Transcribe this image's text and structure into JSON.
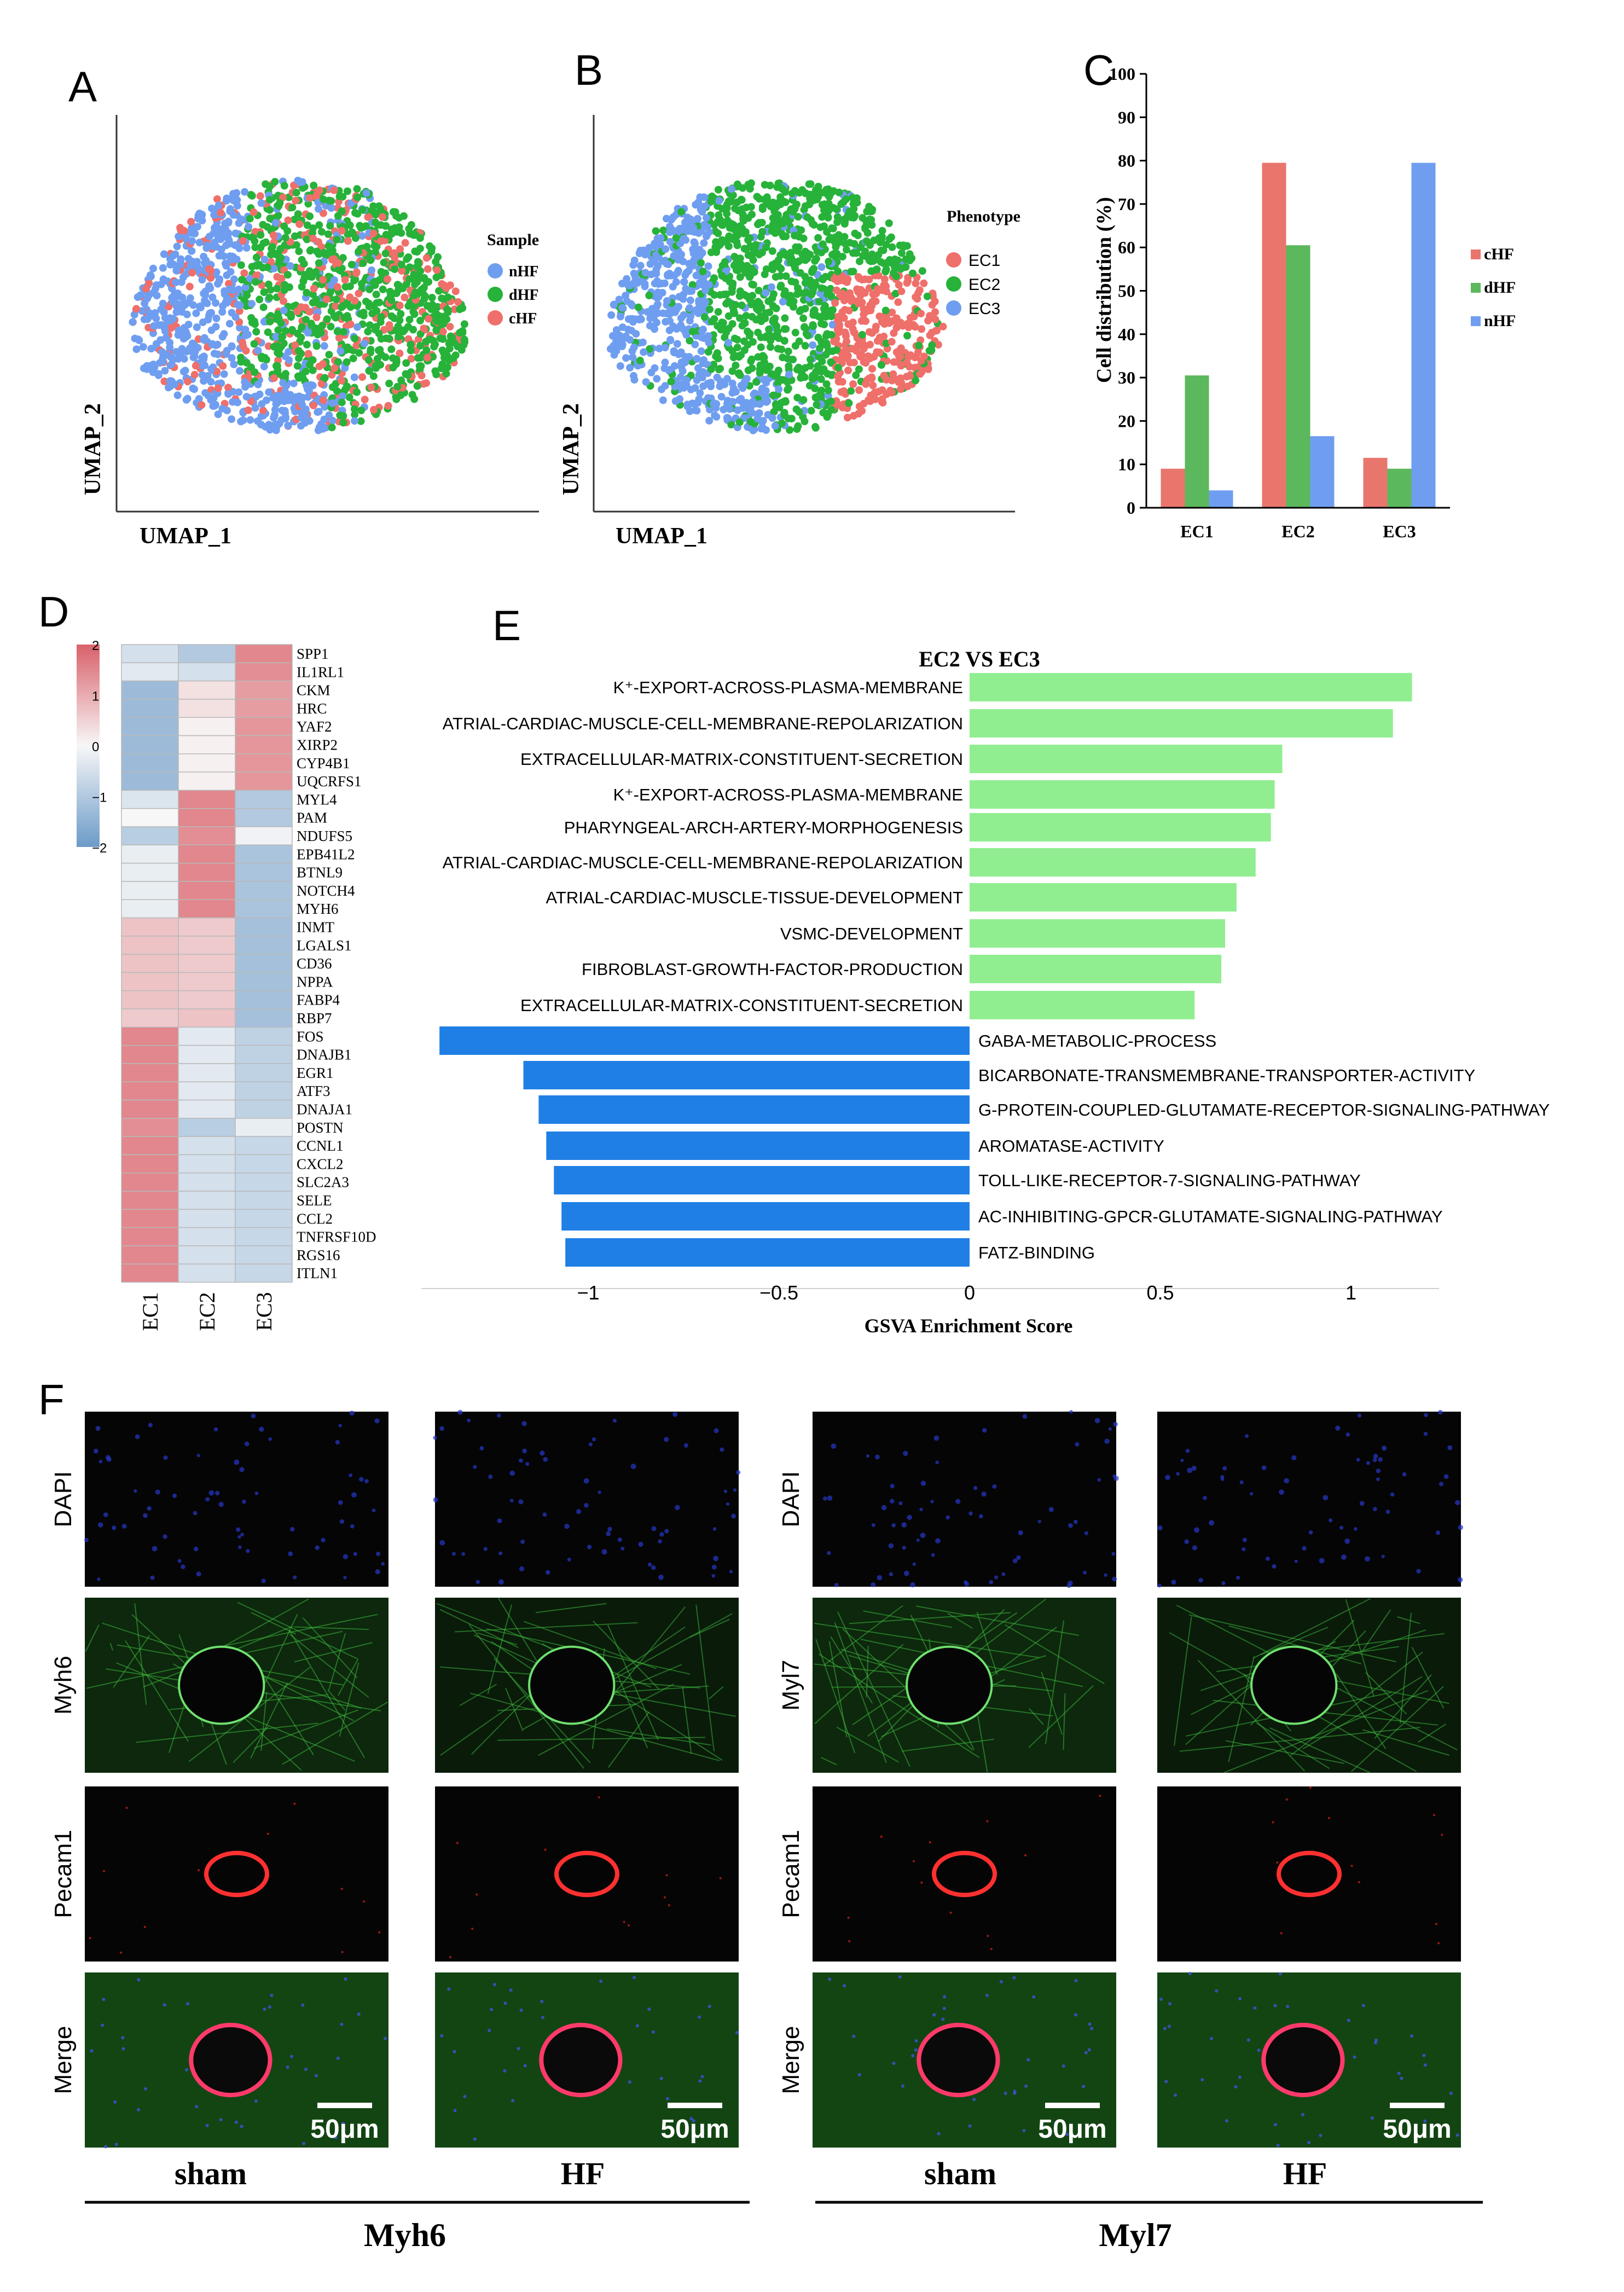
{
  "colors": {
    "cHF": "#e8766d",
    "dHF": "#5cb85c",
    "nHF": "#6f9ef0",
    "up": "#90ee90",
    "down": "#1f7fe5",
    "micro_bg": "#050505"
  },
  "panel_labels": {
    "A": "A",
    "B": "B",
    "C": "C",
    "D": "D",
    "E": "E",
    "F": "F"
  },
  "chart_data": [
    {
      "id": "A",
      "type": "scatter",
      "xlabel": "UMAP_1",
      "ylabel": "UMAP_2",
      "legend_title": "Sample",
      "legend_placement": "right",
      "series": [
        {
          "name": "nHF",
          "color": "#6f9ef0"
        },
        {
          "name": "dHF",
          "color": "#27b23a"
        },
        {
          "name": "cHF",
          "color": "#ef6f6a"
        }
      ]
    },
    {
      "id": "B",
      "type": "scatter",
      "xlabel": "UMAP_1",
      "ylabel": "UMAP_2",
      "legend_title": "Phenotype",
      "legend_placement": "right",
      "series": [
        {
          "name": "EC1",
          "color": "#ef6f6a"
        },
        {
          "name": "EC2",
          "color": "#27b23a"
        },
        {
          "name": "EC3",
          "color": "#6f9ef0"
        }
      ]
    },
    {
      "id": "C",
      "type": "bar",
      "categories": [
        "EC1",
        "EC2",
        "EC3"
      ],
      "series": [
        {
          "name": "cHF",
          "color": "#e8766d",
          "values": [
            9,
            79.5,
            11.5
          ]
        },
        {
          "name": "dHF",
          "color": "#5cb85c",
          "values": [
            30.5,
            60.5,
            9
          ]
        },
        {
          "name": "nHF",
          "color": "#6f9ef0",
          "values": [
            4,
            16.5,
            79.5
          ]
        }
      ],
      "ylabel": "Cell distribution (%)",
      "ylim": [
        0,
        100
      ],
      "yticks": [
        "0",
        "10",
        "20",
        "30",
        "40",
        "50",
        "60",
        "70",
        "80",
        "90",
        "100"
      ],
      "legend_placement": "right"
    },
    {
      "id": "D",
      "type": "heatmap",
      "columns": [
        "EC1",
        "EC2",
        "EC3"
      ],
      "genes": [
        "SPP1",
        "IL1RL1",
        "CKM",
        "HRC",
        "YAF2",
        "XIRP2",
        "CYP4B1",
        "UQCRFS1",
        "MYL4",
        "PAM",
        "NDUFS5",
        "EPB41L2",
        "BTNL9",
        "NOTCH4",
        "MYH6",
        "INMT",
        "LGALS1",
        "CD36",
        "NPPA",
        "FABP4",
        "RBP7",
        "FOS",
        "DNAJB1",
        "EGR1",
        "ATF3",
        "DNAJA1",
        "POSTN",
        "CCNL1",
        "CXCL2",
        "SLC2A3",
        "SELE",
        "CCL2",
        "TNFRSF10D",
        "RGS16",
        "ITLN1"
      ],
      "values": [
        [
          -0.5,
          -1,
          1.5
        ],
        [
          -0.3,
          -0.5,
          1.4
        ],
        [
          -1.3,
          0.3,
          1.2
        ],
        [
          -1.3,
          0.3,
          1.2
        ],
        [
          -1.3,
          0.1,
          1.3
        ],
        [
          -1.3,
          0.1,
          1.3
        ],
        [
          -1.3,
          0.1,
          1.3
        ],
        [
          -1.3,
          0.1,
          1.3
        ],
        [
          -0.4,
          1.5,
          -1
        ],
        [
          0,
          1.5,
          -1
        ],
        [
          -0.9,
          1.4,
          -0.1
        ],
        [
          -0.2,
          1.5,
          -1.1
        ],
        [
          -0.2,
          1.5,
          -1.1
        ],
        [
          -0.2,
          1.5,
          -1.1
        ],
        [
          -0.2,
          1.5,
          -1.1
        ],
        [
          0.7,
          0.6,
          -1.2
        ],
        [
          0.7,
          0.6,
          -1.2
        ],
        [
          0.7,
          0.6,
          -1.2
        ],
        [
          0.7,
          0.6,
          -1.2
        ],
        [
          0.7,
          0.6,
          -1.2
        ],
        [
          0.6,
          0.7,
          -1.2
        ],
        [
          1.5,
          -0.3,
          -0.8
        ],
        [
          1.5,
          -0.3,
          -0.8
        ],
        [
          1.5,
          -0.3,
          -0.8
        ],
        [
          1.5,
          -0.3,
          -0.8
        ],
        [
          1.5,
          -0.3,
          -0.8
        ],
        [
          1.4,
          -0.9,
          -0.2
        ],
        [
          1.5,
          -0.5,
          -0.7
        ],
        [
          1.5,
          -0.5,
          -0.7
        ],
        [
          1.5,
          -0.5,
          -0.7
        ],
        [
          1.5,
          -0.5,
          -0.7
        ],
        [
          1.5,
          -0.5,
          -0.7
        ],
        [
          1.5,
          -0.5,
          -0.7
        ],
        [
          1.5,
          -0.5,
          -0.7
        ],
        [
          1.5,
          -0.5,
          -0.7
        ]
      ],
      "colorbar": {
        "ticks": [
          "2",
          "1",
          "0",
          "−1",
          "−2"
        ],
        "min": -2,
        "max": 2,
        "low": "#6c9bc8",
        "mid": "#f7f7f7",
        "high": "#d9616a"
      }
    },
    {
      "id": "E",
      "type": "bar",
      "orientation": "horizontal",
      "title": "EC2 VS EC3",
      "xlabel": "GSVA Enrichment Score",
      "xlim": [
        -1.4,
        1.22
      ],
      "xticks": [
        -1,
        -0.5,
        0,
        0.5,
        1
      ],
      "xtick_labels": [
        "−1",
        "−0.5",
        "0",
        "0.5",
        "1"
      ],
      "terms": [
        {
          "label": "K⁺-EXPORT-ACROSS-PLASMA-MEMBRANE",
          "value": 1.16
        },
        {
          "label": "ATRIAL-CARDIAC-MUSCLE-CELL-MEMBRANE-REPOLARIZATION",
          "value": 1.11
        },
        {
          "label": "EXTRACELLULAR-MATRIX-CONSTITUENT-SECRETION",
          "value": 0.82
        },
        {
          "label": "K⁺-EXPORT-ACROSS-PLASMA-MEMBRANE",
          "value": 0.8
        },
        {
          "label": "PHARYNGEAL-ARCH-ARTERY-MORPHOGENESIS",
          "value": 0.79
        },
        {
          "label": "ATRIAL-CARDIAC-MUSCLE-CELL-MEMBRANE-REPOLARIZATION",
          "value": 0.75
        },
        {
          "label": "ATRIAL-CARDIAC-MUSCLE-TISSUE-DEVELOPMENT",
          "value": 0.7
        },
        {
          "label": "VSMC-DEVELOPMENT",
          "value": 0.67
        },
        {
          "label": "FIBROBLAST-GROWTH-FACTOR-PRODUCTION",
          "value": 0.66
        },
        {
          "label": "EXTRACELLULAR-MATRIX-CONSTITUENT-SECRETION",
          "value": 0.59
        },
        {
          "label": "GABA-METABOLIC-PROCESS",
          "value": -1.39
        },
        {
          "label": "BICARBONATE-TRANSMEMBRANE-TRANSPORTER-ACTIVITY",
          "value": -1.17
        },
        {
          "label": "G-PROTEIN-COUPLED-GLUTAMATE-RECEPTOR-SIGNALING-PATHWAY",
          "value": -1.13
        },
        {
          "label": "AROMATASE-ACTIVITY",
          "value": -1.11
        },
        {
          "label": "TOLL-LIKE-RECEPTOR-7-SIGNALING-PATHWAY",
          "value": -1.09
        },
        {
          "label": "AC-INHIBITING-GPCR-GLUTAMATE-SIGNALING-PATHWAY",
          "value": -1.07
        },
        {
          "label": "FATZ-BINDING",
          "value": -1.06
        }
      ]
    }
  ],
  "panel_f": {
    "groups": [
      {
        "name": "Myh6",
        "conditions": [
          "sham",
          "HF"
        ],
        "rows": [
          "DAPI",
          "Myh6",
          "Pecam1",
          "Merge"
        ]
      },
      {
        "name": "Myl7",
        "conditions": [
          "sham",
          "HF"
        ],
        "rows": [
          "DAPI",
          "Myl7",
          "Pecam1",
          "Merge"
        ]
      }
    ],
    "scale_bar": "50μm"
  }
}
